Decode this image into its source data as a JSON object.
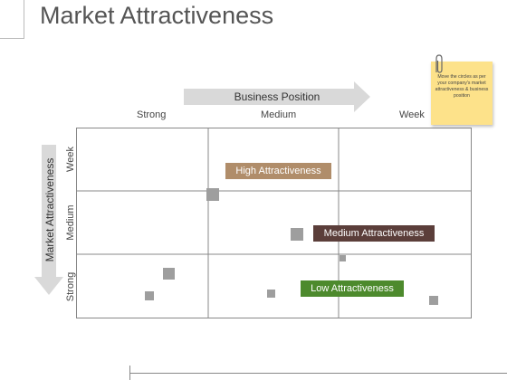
{
  "title": "Market Attractiveness",
  "x_axis": {
    "label": "Business Position",
    "columns": [
      "Strong",
      "Medium",
      "Week"
    ]
  },
  "y_axis": {
    "label": "Market Attractiveness",
    "rows": [
      "Week",
      "Medium",
      "Strong"
    ]
  },
  "labels": {
    "high": "High Attractiveness",
    "medium": "Medium Attractiveness",
    "low": "Low Attractiveness"
  },
  "note": "Move the circles as per your company's market attractiveness & business position",
  "colors": {
    "high": "#b08d6a",
    "medium": "#5b3e3a",
    "low": "#4d8a2d",
    "arrow": "#d9d9d9",
    "sticky": "#fde28a",
    "marker": "#9e9e9e"
  },
  "icons": [
    "paperclip-icon"
  ]
}
